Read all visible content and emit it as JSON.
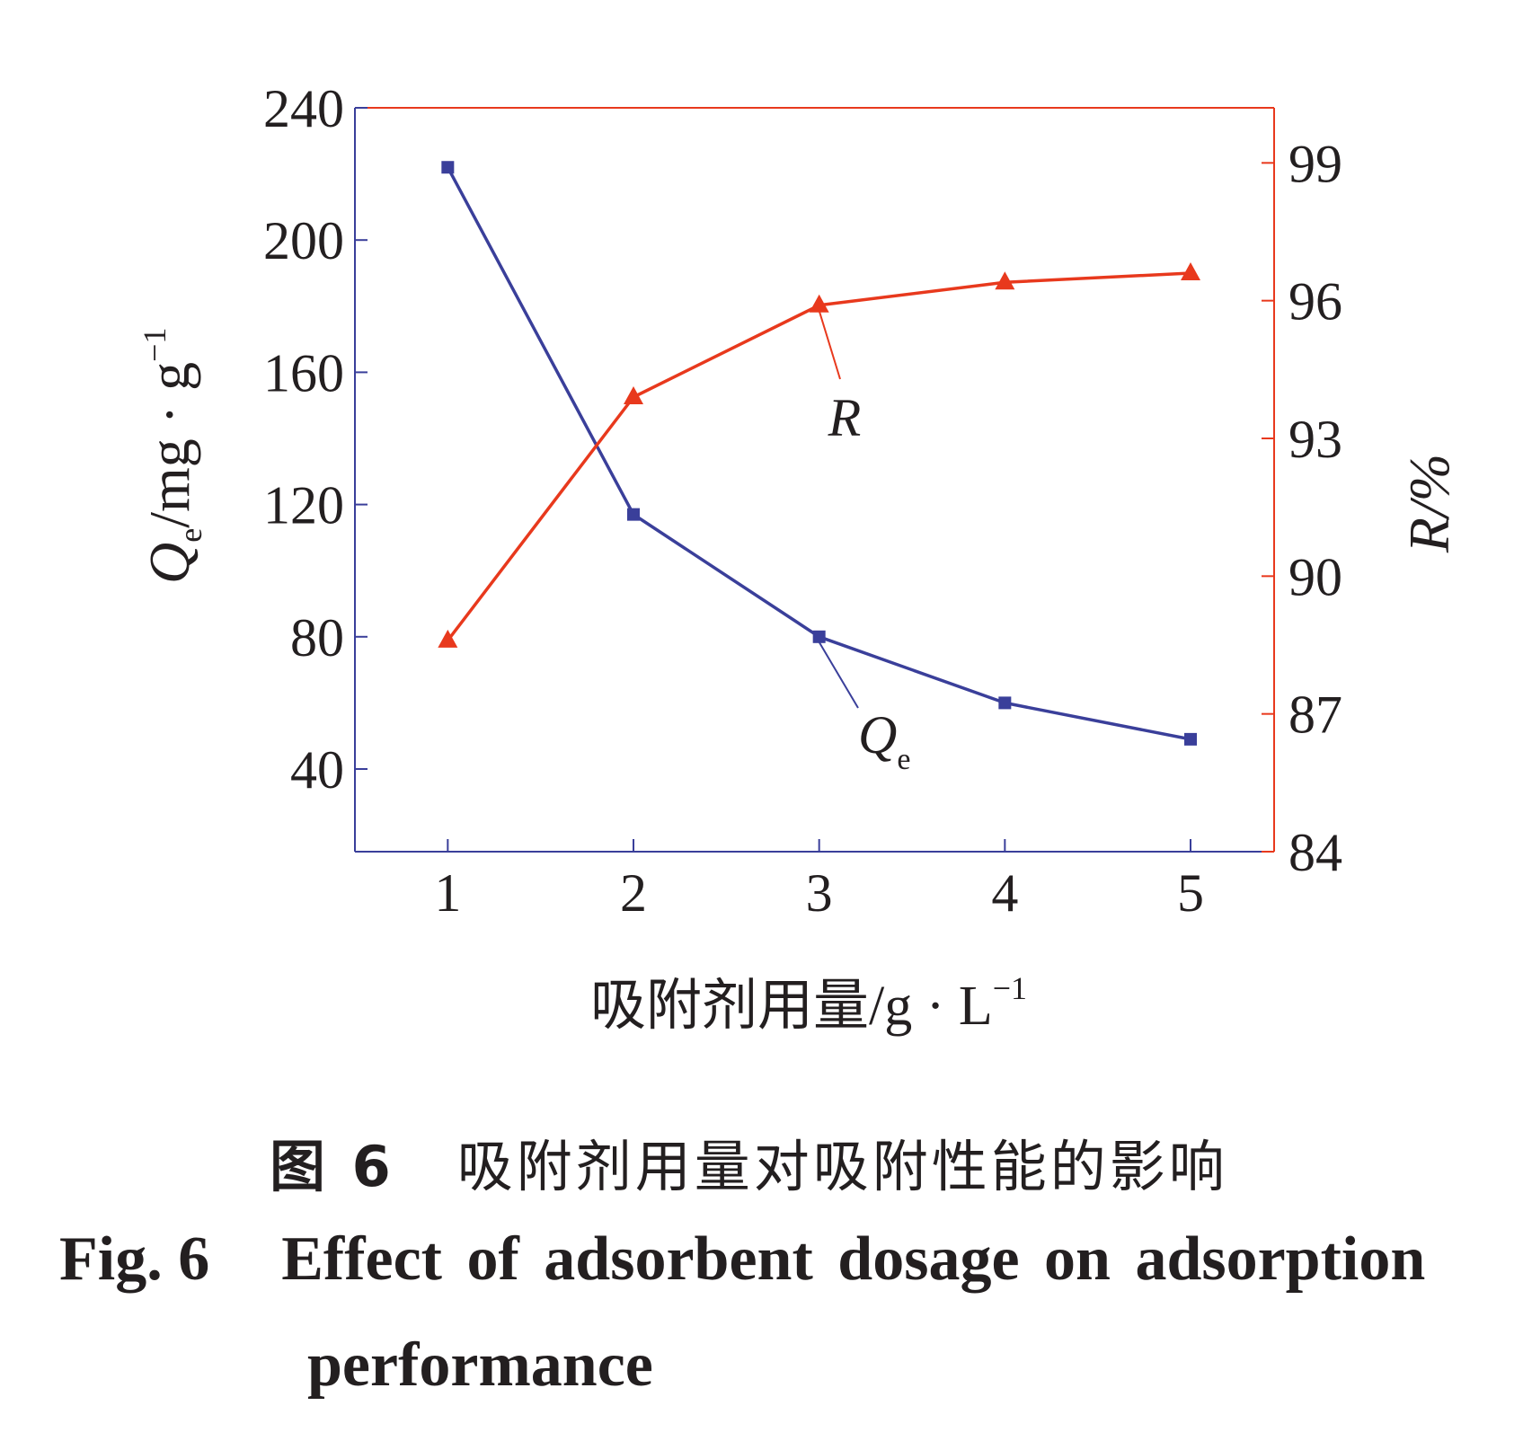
{
  "chart_data": {
    "type": "line",
    "x": [
      1,
      2,
      3,
      4,
      5
    ],
    "x_tick_labels": [
      "1",
      "2",
      "3",
      "4",
      "5"
    ],
    "xlim": [
      0.5,
      5.45
    ],
    "xlabel_cn": "吸附剂用量/g · L",
    "xlabel_sup": "−1",
    "y_left": {
      "label_main": "Q",
      "label_sub": "e",
      "label_unit": "/mg · g",
      "label_sup": "−1",
      "ylim": [
        15,
        240
      ],
      "ticks": [
        40,
        80,
        120,
        160,
        200,
        240
      ],
      "tick_labels": [
        "40",
        "80",
        "120",
        "160",
        "200",
        "240"
      ],
      "color": "#3a3f9a"
    },
    "y_right": {
      "label": "R/%",
      "ylim": [
        84,
        100.2
      ],
      "ticks": [
        84,
        87,
        90,
        93,
        96,
        99
      ],
      "tick_labels": [
        "84",
        "87",
        "90",
        "93",
        "96",
        "99"
      ],
      "color": "#e8391d"
    },
    "series": [
      {
        "name": "Qe",
        "axis": "left",
        "marker": "square",
        "color": "#3a3f9a",
        "label_main": "Q",
        "label_sub": "e",
        "values": [
          222,
          117,
          80,
          60,
          49
        ]
      },
      {
        "name": "R",
        "axis": "right",
        "marker": "triangle",
        "color": "#e8391d",
        "label_main": "R",
        "values": [
          88.6,
          93.9,
          95.9,
          96.4,
          96.6
        ]
      }
    ]
  },
  "caption": {
    "cn_label": "图 6",
    "cn_title": "吸附剂用量对吸附性能的影响",
    "en_label": "Fig. 6",
    "en_title_line1": "Effect of adsorbent dosage on adsorption",
    "en_title_line2": "performance"
  }
}
